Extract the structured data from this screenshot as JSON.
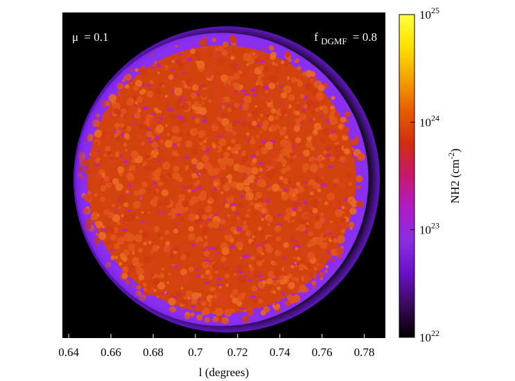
{
  "chart_data": {
    "type": "heatmap",
    "title": "",
    "xlabel": "l (degrees)",
    "ylabel": "",
    "xlim": [
      0.637,
      0.79
    ],
    "x_ticks": [
      0.64,
      0.66,
      0.68,
      0.7,
      0.72,
      0.74,
      0.76,
      0.78
    ],
    "x_tick_labels": [
      "0.64",
      "0.66",
      "0.68",
      "0.7",
      "0.72",
      "0.74",
      "0.76",
      "0.78"
    ],
    "y_ticks_shown": false,
    "grid": false,
    "annotations": {
      "top_left": {
        "symbol": "μ",
        "value": "= 0.1"
      },
      "top_right": {
        "base": "f",
        "subscript": "DGMF",
        "value": "= 0.8"
      }
    },
    "colorbar": {
      "label_base": "NH2 (cm",
      "label_exponent": "-2",
      "label_close": ")",
      "scale": "log",
      "range": [
        1e+22,
        1e+25
      ],
      "ticks": [
        {
          "value": 1e+22,
          "base": "10",
          "exp": "22"
        },
        {
          "value": 1e+23,
          "base": "10",
          "exp": "23"
        },
        {
          "value": 1e+24,
          "base": "10",
          "exp": "24"
        },
        {
          "value": 1e+25,
          "base": "10",
          "exp": "25"
        }
      ],
      "colormap": [
        "#000000",
        "#3a0a5a",
        "#6a10c8",
        "#8a2ee0",
        "#b01cc8",
        "#c8186e",
        "#d22c12",
        "#e65c00",
        "#f4a000",
        "#ffe000",
        "#ffff40"
      ]
    },
    "map": {
      "background_value": 1e+22,
      "background_color": "#000000",
      "disk_center_l": 0.7125,
      "disk_radius_l": 0.0695,
      "rim_value": 2e+22,
      "rim_color": "#8a2ef0",
      "interior_value": 4e+23,
      "interior_color": "#d2420c",
      "clump_color": "#e65c1a",
      "filament_color": "#b81ec8"
    }
  }
}
